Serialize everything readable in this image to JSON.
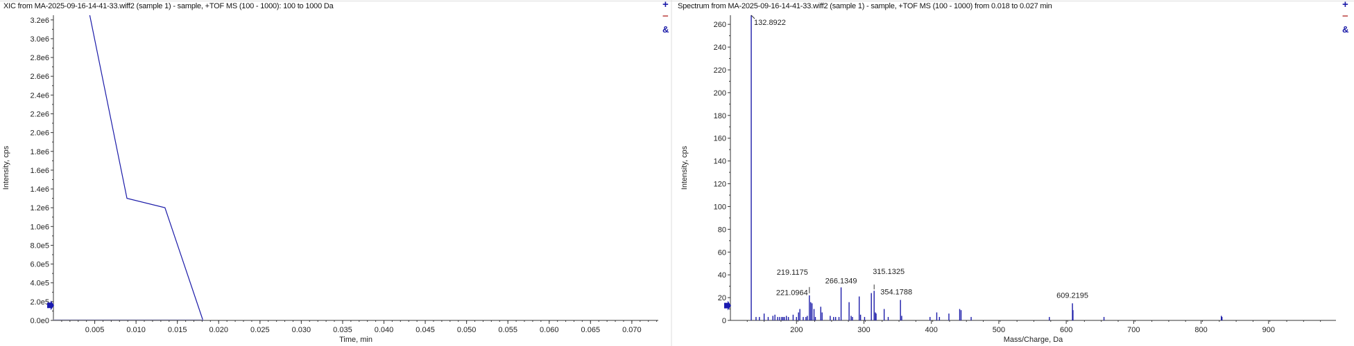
{
  "panels": [
    {
      "title": "XIC from MA-2025-09-16-14-41-33.wiff2 (sample 1) - sample, +TOF MS (100 - 1000): 100 to 1000 Da"
    },
    {
      "title": "Spectrum from MA-2025-09-16-14-41-33.wiff2 (sample 1) - sample, +TOF MS (100 - 1000) from 0.018 to 0.027 min"
    }
  ],
  "tools": {
    "zoom_in": "+",
    "zoom_out": "−",
    "link": "&"
  },
  "colors": {
    "trace": "#1a1aa8",
    "zoom_in": "#1a1aa8",
    "zoom_out": "#c0504d",
    "link": "#1a1aa8",
    "marker": "#1a1ab0"
  },
  "chart_data": [
    {
      "type": "line",
      "xlabel": "Time, min",
      "ylabel": "Intensity, cps",
      "xlim": [
        0,
        0.0732
      ],
      "ylim": [
        0,
        3250000.0
      ],
      "xticks": [
        0.005,
        0.01,
        0.015,
        0.02,
        0.025,
        0.03,
        0.035,
        0.04,
        0.045,
        0.05,
        0.055,
        0.06,
        0.065,
        0.07
      ],
      "xtick_labels": [
        "0.005",
        "0.010",
        "0.015",
        "0.020",
        "0.025",
        "0.030",
        "0.035",
        "0.040",
        "0.045",
        "0.050",
        "0.055",
        "0.060",
        "0.065",
        "0.070"
      ],
      "yticks": [
        0,
        200000,
        400000,
        600000,
        800000,
        1000000,
        1200000,
        1400000,
        1600000,
        1800000,
        2000000,
        2200000,
        2400000,
        2600000,
        2800000,
        3000000,
        3200000
      ],
      "ytick_labels": [
        "0.0e0",
        "2.0e5",
        "4.0e5",
        "6.0e5",
        "8.0e5",
        "1.0e6",
        "1.2e6",
        "1.4e6",
        "1.6e6",
        "1.8e6",
        "2.0e6",
        "2.2e6",
        "2.4e6",
        "2.6e6",
        "2.8e6",
        "3.0e6",
        "3.2e6"
      ],
      "x": [
        0.0044,
        0.0089,
        0.0135,
        0.0181
      ],
      "y": [
        3250000,
        1300000,
        1200000,
        0
      ],
      "marker_value": 160000
    },
    {
      "type": "bar",
      "xlabel": "Mass/Charge, Da",
      "ylabel": "Intensity, cps",
      "xlim": [
        102,
        1000
      ],
      "ylim": [
        0,
        268
      ],
      "xticks": [
        200,
        300,
        400,
        500,
        600,
        700,
        800,
        900
      ],
      "xtick_labels": [
        "200",
        "300",
        "400",
        "500",
        "600",
        "700",
        "800",
        "900"
      ],
      "yticks": [
        0,
        20,
        40,
        60,
        80,
        100,
        120,
        140,
        160,
        180,
        200,
        220,
        240,
        260
      ],
      "ytick_labels": [
        "0",
        "20",
        "40",
        "60",
        "80",
        "100",
        "120",
        "140",
        "160",
        "180",
        "200",
        "220",
        "240",
        "260"
      ],
      "peaks": [
        [
          132.8922,
          268
        ],
        [
          140,
          3
        ],
        [
          145,
          3
        ],
        [
          152,
          6
        ],
        [
          158,
          3
        ],
        [
          165,
          4
        ],
        [
          168,
          5
        ],
        [
          172,
          3
        ],
        [
          175,
          3
        ],
        [
          178,
          3
        ],
        [
          180,
          3
        ],
        [
          182,
          3
        ],
        [
          185,
          4
        ],
        [
          188,
          3
        ],
        [
          195,
          5
        ],
        [
          200,
          3
        ],
        [
          203,
          7
        ],
        [
          205,
          10
        ],
        [
          210,
          3
        ],
        [
          214,
          3
        ],
        [
          216,
          4
        ],
        [
          219.1175,
          22
        ],
        [
          221.0964,
          16
        ],
        [
          223,
          15
        ],
        [
          226,
          10
        ],
        [
          228,
          3
        ],
        [
          236,
          12
        ],
        [
          238,
          7
        ],
        [
          250,
          4
        ],
        [
          255,
          3
        ],
        [
          258,
          3
        ],
        [
          263,
          3
        ],
        [
          266.1349,
          29
        ],
        [
          278,
          16
        ],
        [
          281,
          4
        ],
        [
          283,
          3
        ],
        [
          293,
          21
        ],
        [
          295,
          5
        ],
        [
          301,
          3
        ],
        [
          311,
          24
        ],
        [
          315.1325,
          26
        ],
        [
          317,
          7
        ],
        [
          318,
          6
        ],
        [
          330,
          10
        ],
        [
          336,
          3
        ],
        [
          354.1788,
          18
        ],
        [
          356,
          4
        ],
        [
          398,
          3
        ],
        [
          408,
          7
        ],
        [
          412,
          3
        ],
        [
          426,
          6
        ],
        [
          442,
          10
        ],
        [
          444,
          9
        ],
        [
          459,
          3
        ],
        [
          575,
          3
        ],
        [
          609.2195,
          15
        ],
        [
          610,
          9
        ],
        [
          656,
          3
        ],
        [
          830,
          4
        ],
        [
          831,
          3
        ]
      ],
      "labels": [
        "132.8922",
        "219.1175",
        "221.0964",
        "266.1349",
        "315.1325",
        "354.1788",
        "609.2195"
      ],
      "marker_value": 13
    }
  ]
}
